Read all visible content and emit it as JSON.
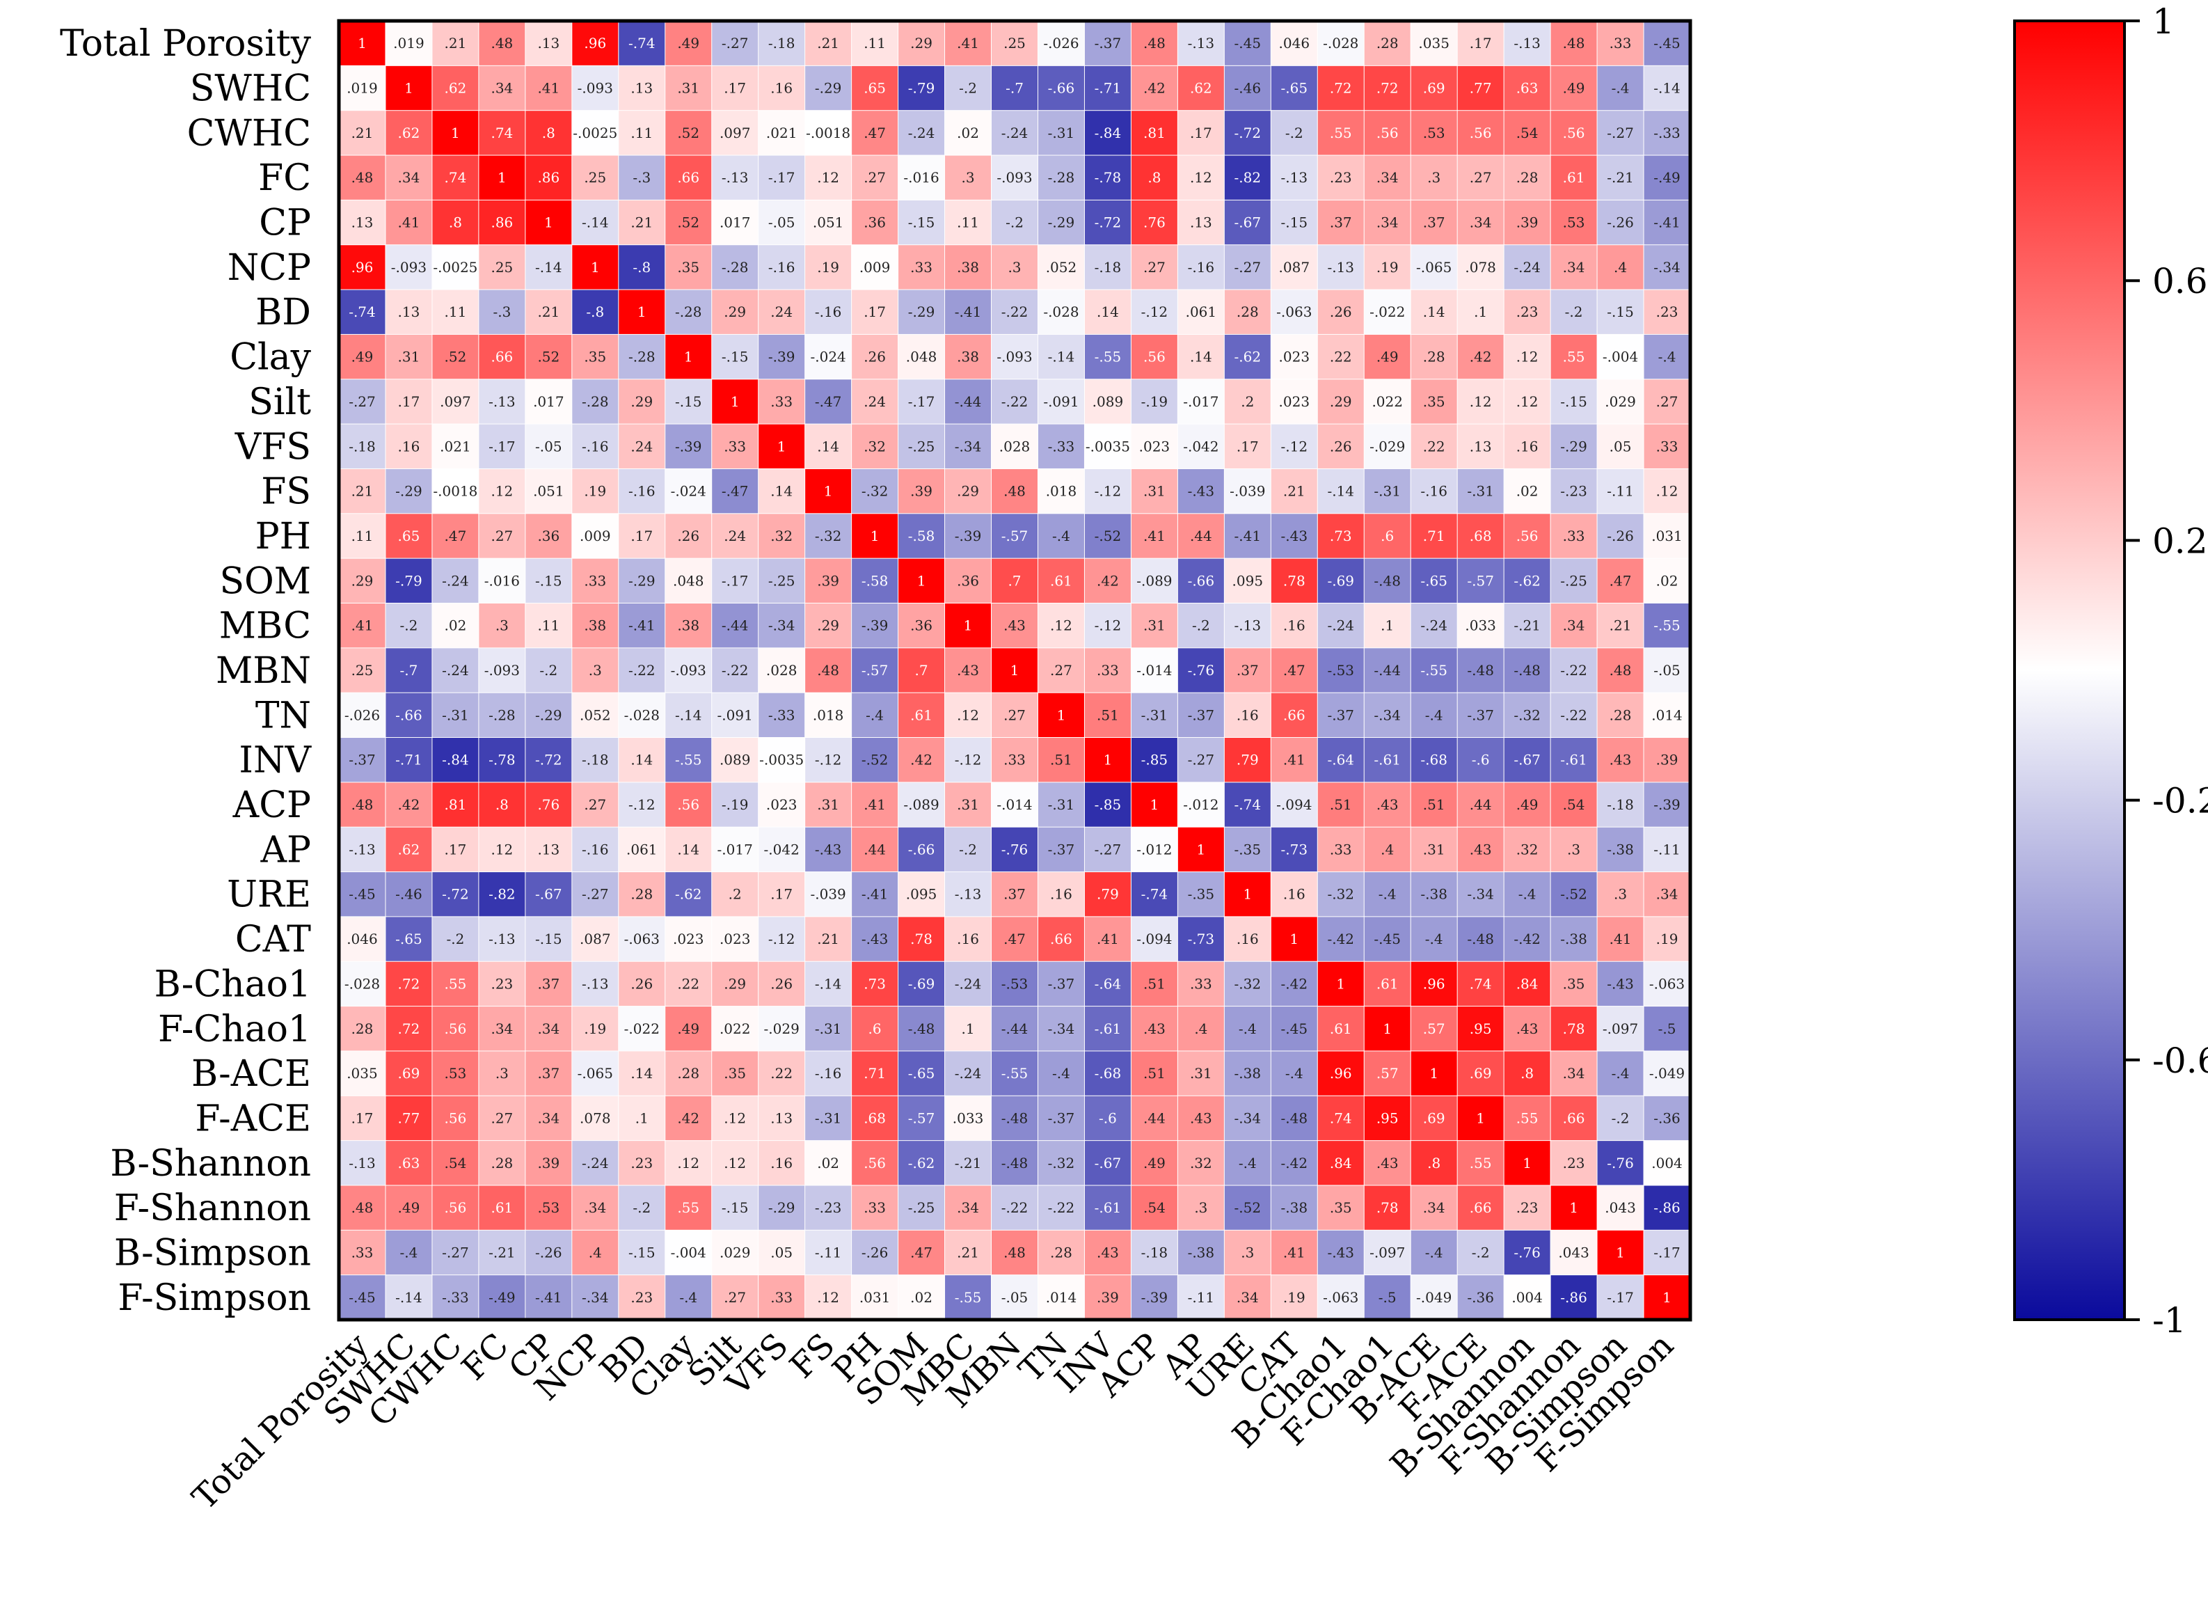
{
  "chart_data": {
    "type": "heatmap",
    "labels": [
      "Total Porosity",
      "SWHC",
      "CWHC",
      "FC",
      "CP",
      "NCP",
      "BD",
      "Clay",
      "Silt",
      "VFS",
      "FS",
      "PH",
      "SOM",
      "MBC",
      "MBN",
      "TN",
      "INV",
      "ACP",
      "AP",
      "URE",
      "CAT",
      "B-Chao1",
      "F-Chao1",
      "B-ACE",
      "F-ACE",
      "B-Shannon",
      "F-Shannon",
      "B-Simpson",
      "F-Simpson"
    ],
    "matrix": [
      [
        1,
        0.019,
        0.21,
        0.48,
        0.13,
        0.96,
        -0.74,
        0.49,
        -0.27,
        -0.18,
        0.21,
        0.11,
        0.29,
        0.41,
        0.25,
        -0.026,
        -0.37,
        0.48,
        -0.13,
        -0.45,
        0.046,
        -0.028,
        0.28,
        0.035,
        0.17,
        -0.13,
        0.48,
        0.33,
        -0.45
      ],
      [
        0.019,
        1,
        0.62,
        0.34,
        0.41,
        -0.093,
        0.13,
        0.31,
        0.17,
        0.16,
        -0.29,
        0.65,
        -0.79,
        -0.2,
        -0.7,
        -0.66,
        -0.71,
        0.42,
        0.62,
        -0.46,
        -0.65,
        0.72,
        0.72,
        0.69,
        0.77,
        0.63,
        0.49,
        -0.4,
        -0.14
      ],
      [
        0.21,
        0.62,
        1,
        0.74,
        0.8,
        -0.0025,
        0.11,
        0.52,
        0.097,
        0.021,
        -0.0018,
        0.47,
        -0.24,
        0.02,
        -0.24,
        -0.31,
        -0.84,
        0.81,
        0.17,
        -0.72,
        -0.2,
        0.55,
        0.56,
        0.53,
        0.56,
        0.54,
        0.56,
        -0.27,
        -0.33
      ],
      [
        0.48,
        0.34,
        0.74,
        1,
        0.86,
        0.25,
        -0.3,
        0.66,
        -0.13,
        -0.17,
        0.12,
        0.27,
        -0.016,
        0.3,
        -0.093,
        -0.28,
        -0.78,
        0.8,
        0.12,
        -0.82,
        -0.13,
        0.23,
        0.34,
        0.3,
        0.27,
        0.28,
        0.61,
        -0.21,
        -0.49
      ],
      [
        0.13,
        0.41,
        0.8,
        0.86,
        1,
        -0.14,
        0.21,
        0.52,
        0.017,
        -0.05,
        0.051,
        0.36,
        -0.15,
        0.11,
        -0.2,
        -0.29,
        -0.72,
        0.76,
        0.13,
        -0.67,
        -0.15,
        0.37,
        0.34,
        0.37,
        0.34,
        0.39,
        0.53,
        -0.26,
        -0.41
      ],
      [
        0.96,
        -0.093,
        -0.0025,
        0.25,
        -0.14,
        1,
        -0.8,
        0.35,
        -0.28,
        -0.16,
        0.19,
        0.009,
        0.33,
        0.38,
        0.3,
        0.052,
        -0.18,
        0.27,
        -0.16,
        -0.27,
        0.087,
        -0.13,
        0.19,
        -0.065,
        0.078,
        -0.24,
        0.34,
        0.4,
        -0.34
      ],
      [
        -0.74,
        0.13,
        0.11,
        -0.3,
        0.21,
        -0.8,
        1,
        -0.28,
        0.29,
        0.24,
        -0.16,
        0.17,
        -0.29,
        -0.41,
        -0.22,
        -0.028,
        0.14,
        -0.12,
        0.061,
        0.28,
        -0.063,
        0.26,
        -0.022,
        0.14,
        0.1,
        0.23,
        -0.2,
        -0.15,
        0.23
      ],
      [
        0.49,
        0.31,
        0.52,
        0.66,
        0.52,
        0.35,
        -0.28,
        1,
        -0.15,
        -0.39,
        -0.024,
        0.26,
        0.048,
        0.38,
        -0.093,
        -0.14,
        -0.55,
        0.56,
        0.14,
        -0.62,
        0.023,
        0.22,
        0.49,
        0.28,
        0.42,
        0.12,
        0.55,
        -0.004,
        -0.4
      ],
      [
        -0.27,
        0.17,
        0.097,
        -0.13,
        0.017,
        -0.28,
        0.29,
        -0.15,
        1,
        0.33,
        -0.47,
        0.24,
        -0.17,
        -0.44,
        -0.22,
        -0.091,
        0.089,
        -0.19,
        -0.017,
        0.2,
        0.023,
        0.29,
        0.022,
        0.35,
        0.12,
        0.12,
        -0.15,
        0.029,
        0.27
      ],
      [
        -0.18,
        0.16,
        0.021,
        -0.17,
        -0.05,
        -0.16,
        0.24,
        -0.39,
        0.33,
        1,
        0.14,
        0.32,
        -0.25,
        -0.34,
        0.028,
        -0.33,
        -0.0035,
        0.023,
        -0.042,
        0.17,
        -0.12,
        0.26,
        -0.029,
        0.22,
        0.13,
        0.16,
        -0.29,
        0.05,
        0.33
      ],
      [
        0.21,
        -0.29,
        -0.0018,
        0.12,
        0.051,
        0.19,
        -0.16,
        -0.024,
        -0.47,
        0.14,
        1,
        -0.32,
        0.39,
        0.29,
        0.48,
        0.018,
        -0.12,
        0.31,
        -0.43,
        -0.039,
        0.21,
        -0.14,
        -0.31,
        -0.16,
        -0.31,
        0.02,
        -0.23,
        -0.11,
        0.12
      ],
      [
        0.11,
        0.65,
        0.47,
        0.27,
        0.36,
        0.009,
        0.17,
        0.26,
        0.24,
        0.32,
        -0.32,
        1,
        -0.58,
        -0.39,
        -0.57,
        -0.4,
        -0.52,
        0.41,
        0.44,
        -0.41,
        -0.43,
        0.73,
        0.6,
        0.71,
        0.68,
        0.56,
        0.33,
        -0.26,
        0.031
      ],
      [
        0.29,
        -0.79,
        -0.24,
        -0.016,
        -0.15,
        0.33,
        -0.29,
        0.048,
        -0.17,
        -0.25,
        0.39,
        -0.58,
        1,
        0.36,
        0.7,
        0.61,
        0.42,
        -0.089,
        -0.66,
        0.095,
        0.78,
        -0.69,
        -0.48,
        -0.65,
        -0.57,
        -0.62,
        -0.25,
        0.47,
        0.02
      ],
      [
        0.41,
        -0.2,
        0.02,
        0.3,
        0.11,
        0.38,
        -0.41,
        0.38,
        -0.44,
        -0.34,
        0.29,
        -0.39,
        0.36,
        1,
        0.43,
        0.12,
        -0.12,
        0.31,
        -0.2,
        -0.13,
        0.16,
        -0.24,
        0.1,
        -0.24,
        0.033,
        -0.21,
        0.34,
        0.21,
        -0.55
      ],
      [
        0.25,
        -0.7,
        -0.24,
        -0.093,
        -0.2,
        0.3,
        -0.22,
        -0.093,
        -0.22,
        0.028,
        0.48,
        -0.57,
        0.7,
        0.43,
        1,
        0.27,
        0.33,
        -0.014,
        -0.76,
        0.37,
        0.47,
        -0.53,
        -0.44,
        -0.55,
        -0.48,
        -0.48,
        -0.22,
        0.48,
        -0.05
      ],
      [
        -0.026,
        -0.66,
        -0.31,
        -0.28,
        -0.29,
        0.052,
        -0.028,
        -0.14,
        -0.091,
        -0.33,
        0.018,
        -0.4,
        0.61,
        0.12,
        0.27,
        1,
        0.51,
        -0.31,
        -0.37,
        0.16,
        0.66,
        -0.37,
        -0.34,
        -0.4,
        -0.37,
        -0.32,
        -0.22,
        0.28,
        0.014
      ],
      [
        -0.37,
        -0.71,
        -0.84,
        -0.78,
        -0.72,
        -0.18,
        0.14,
        -0.55,
        0.089,
        -0.0035,
        -0.12,
        -0.52,
        0.42,
        -0.12,
        0.33,
        0.51,
        1,
        -0.85,
        -0.27,
        0.79,
        0.41,
        -0.64,
        -0.61,
        -0.68,
        -0.6,
        -0.67,
        -0.61,
        0.43,
        0.39
      ],
      [
        0.48,
        0.42,
        0.81,
        0.8,
        0.76,
        0.27,
        -0.12,
        0.56,
        -0.19,
        0.023,
        0.31,
        0.41,
        -0.089,
        0.31,
        -0.014,
        -0.31,
        -0.85,
        1,
        -0.012,
        -0.74,
        -0.094,
        0.51,
        0.43,
        0.51,
        0.44,
        0.49,
        0.54,
        -0.18,
        -0.39
      ],
      [
        -0.13,
        0.62,
        0.17,
        0.12,
        0.13,
        -0.16,
        0.061,
        0.14,
        -0.017,
        -0.042,
        -0.43,
        0.44,
        -0.66,
        -0.2,
        -0.76,
        -0.37,
        -0.27,
        -0.012,
        1,
        -0.35,
        -0.73,
        0.33,
        0.4,
        0.31,
        0.43,
        0.32,
        0.3,
        -0.38,
        -0.11
      ],
      [
        -0.45,
        -0.46,
        -0.72,
        -0.82,
        -0.67,
        -0.27,
        0.28,
        -0.62,
        0.2,
        0.17,
        -0.039,
        -0.41,
        0.095,
        -0.13,
        0.37,
        0.16,
        0.79,
        -0.74,
        -0.35,
        1,
        0.16,
        -0.32,
        -0.4,
        -0.38,
        -0.34,
        -0.4,
        -0.52,
        0.3,
        0.34
      ],
      [
        0.046,
        -0.65,
        -0.2,
        -0.13,
        -0.15,
        0.087,
        -0.063,
        0.023,
        0.023,
        -0.12,
        0.21,
        -0.43,
        0.78,
        0.16,
        0.47,
        0.66,
        0.41,
        -0.094,
        -0.73,
        0.16,
        1,
        -0.42,
        -0.45,
        -0.4,
        -0.48,
        -0.42,
        -0.38,
        0.41,
        0.19
      ],
      [
        -0.028,
        0.72,
        0.55,
        0.23,
        0.37,
        -0.13,
        0.26,
        0.22,
        0.29,
        0.26,
        -0.14,
        0.73,
        -0.69,
        -0.24,
        -0.53,
        -0.37,
        -0.64,
        0.51,
        0.33,
        -0.32,
        -0.42,
        1,
        0.61,
        0.96,
        0.74,
        0.84,
        0.35,
        -0.43,
        -0.063
      ],
      [
        0.28,
        0.72,
        0.56,
        0.34,
        0.34,
        0.19,
        -0.022,
        0.49,
        0.022,
        -0.029,
        -0.31,
        0.6,
        -0.48,
        0.1,
        -0.44,
        -0.34,
        -0.61,
        0.43,
        0.4,
        -0.4,
        -0.45,
        0.61,
        1,
        0.57,
        0.95,
        0.43,
        0.78,
        -0.097,
        -0.5
      ],
      [
        0.035,
        0.69,
        0.53,
        0.3,
        0.37,
        -0.065,
        0.14,
        0.28,
        0.35,
        0.22,
        -0.16,
        0.71,
        -0.65,
        -0.24,
        -0.55,
        -0.4,
        -0.68,
        0.51,
        0.31,
        -0.38,
        -0.4,
        0.96,
        0.57,
        1,
        0.69,
        0.8,
        0.34,
        -0.4,
        -0.049
      ],
      [
        0.17,
        0.77,
        0.56,
        0.27,
        0.34,
        0.078,
        0.1,
        0.42,
        0.12,
        0.13,
        -0.31,
        0.68,
        -0.57,
        0.033,
        -0.48,
        -0.37,
        -0.6,
        0.44,
        0.43,
        -0.34,
        -0.48,
        0.74,
        0.95,
        0.69,
        1,
        0.55,
        0.66,
        -0.2,
        -0.36
      ],
      [
        -0.13,
        0.63,
        0.54,
        0.28,
        0.39,
        -0.24,
        0.23,
        0.12,
        0.12,
        0.16,
        0.02,
        0.56,
        -0.62,
        -0.21,
        -0.48,
        -0.32,
        -0.67,
        0.49,
        0.32,
        -0.4,
        -0.42,
        0.84,
        0.43,
        0.8,
        0.55,
        1,
        0.23,
        -0.76,
        0.004
      ],
      [
        0.48,
        0.49,
        0.56,
        0.61,
        0.53,
        0.34,
        -0.2,
        0.55,
        -0.15,
        -0.29,
        -0.23,
        0.33,
        -0.25,
        0.34,
        -0.22,
        -0.22,
        -0.61,
        0.54,
        0.3,
        -0.52,
        -0.38,
        0.35,
        0.78,
        0.34,
        0.66,
        0.23,
        1,
        0.043,
        -0.86
      ],
      [
        0.33,
        -0.4,
        -0.27,
        -0.21,
        -0.26,
        0.4,
        -0.15,
        -0.004,
        0.029,
        0.05,
        -0.11,
        -0.26,
        0.47,
        0.21,
        0.48,
        0.28,
        0.43,
        -0.18,
        -0.38,
        0.3,
        0.41,
        -0.43,
        -0.097,
        -0.4,
        -0.2,
        -0.76,
        0.043,
        1,
        -0.17
      ],
      [
        -0.45,
        -0.14,
        -0.33,
        -0.49,
        -0.41,
        -0.34,
        0.23,
        -0.4,
        0.27,
        0.33,
        0.12,
        0.031,
        0.02,
        -0.55,
        -0.05,
        0.014,
        0.39,
        -0.39,
        -0.11,
        0.34,
        0.19,
        -0.063,
        -0.5,
        -0.049,
        -0.36,
        0.004,
        -0.86,
        -0.17,
        1
      ]
    ],
    "colorscale": {
      "min": -1,
      "max": 1,
      "colors": [
        "#0a0a9c",
        "#ffffff",
        "#ff0000"
      ],
      "ticks": [
        1,
        0.6,
        0.2,
        -0.2,
        -0.6,
        -1
      ]
    }
  }
}
